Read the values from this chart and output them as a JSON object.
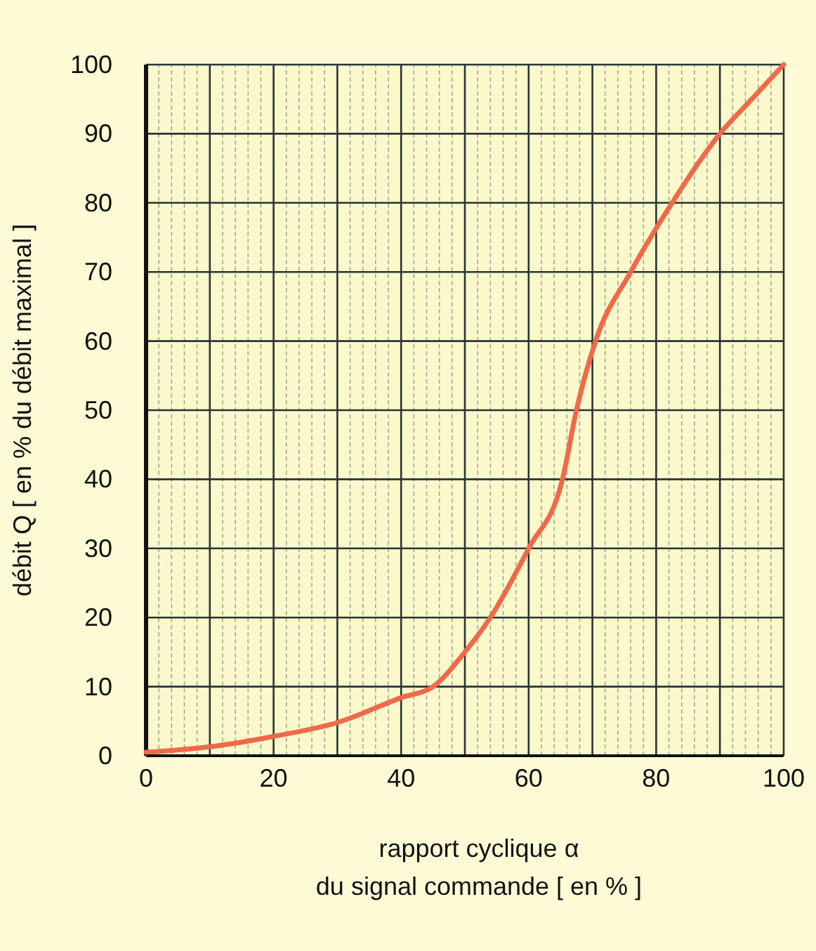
{
  "chart_data": {
    "type": "line",
    "xlabel": "rapport cyclique α\ndu signal commande  [ en % ]",
    "ylabel": "débit Q  [ en % du débit maximal ]",
    "x": [
      0,
      10,
      20,
      30,
      40,
      45,
      50,
      54,
      60,
      65.3,
      67.5,
      70.5,
      76,
      82.5,
      90,
      95,
      100
    ],
    "series": [
      {
        "color": "#ee6a4a",
        "values": [
          0.5,
          1.3,
          2.8,
          4.8,
          8.4,
          10,
          15,
          20,
          30,
          40,
          50,
          60,
          70,
          80,
          90,
          95,
          100
        ]
      }
    ],
    "xlim": [
      0,
      100
    ],
    "ylim": [
      0,
      100
    ],
    "xticks": [
      0,
      {
        "value": 10,
        "label": null
      },
      20,
      {
        "value": 30,
        "label": null
      },
      40,
      {
        "value": 50,
        "label": null
      },
      60,
      {
        "value": 70,
        "label": null
      },
      80,
      {
        "value": 90,
        "label": null
      },
      100
    ],
    "yticks": [
      0,
      10,
      20,
      30,
      40,
      50,
      60,
      70,
      80,
      90,
      100
    ],
    "grid": true,
    "marker": "none",
    "line_style": "solid"
  }
}
